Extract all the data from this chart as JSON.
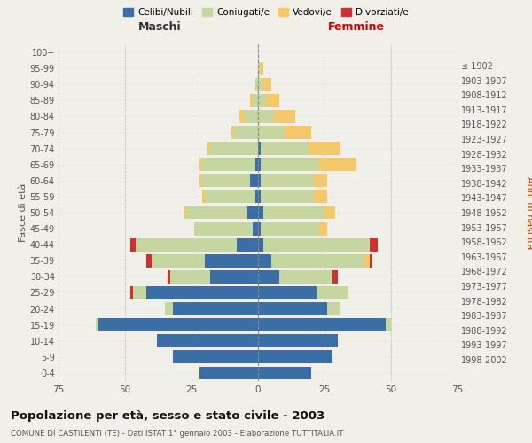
{
  "age_groups": [
    "0-4",
    "5-9",
    "10-14",
    "15-19",
    "20-24",
    "25-29",
    "30-34",
    "35-39",
    "40-44",
    "45-49",
    "50-54",
    "55-59",
    "60-64",
    "65-69",
    "70-74",
    "75-79",
    "80-84",
    "85-89",
    "90-94",
    "95-99",
    "100+"
  ],
  "birth_years": [
    "1998-2002",
    "1993-1997",
    "1988-1992",
    "1983-1987",
    "1978-1982",
    "1973-1977",
    "1968-1972",
    "1963-1967",
    "1958-1962",
    "1953-1957",
    "1948-1952",
    "1943-1947",
    "1938-1942",
    "1933-1937",
    "1928-1932",
    "1923-1927",
    "1918-1922",
    "1913-1917",
    "1908-1912",
    "1903-1907",
    "≤ 1902"
  ],
  "male": {
    "celibe": [
      22,
      32,
      38,
      60,
      32,
      42,
      18,
      20,
      8,
      2,
      4,
      1,
      3,
      1,
      0,
      0,
      0,
      0,
      0,
      0,
      0
    ],
    "coniugato": [
      0,
      0,
      0,
      1,
      3,
      5,
      15,
      20,
      38,
      22,
      23,
      19,
      18,
      20,
      18,
      9,
      5,
      2,
      1,
      0,
      0
    ],
    "vedovo": [
      0,
      0,
      0,
      0,
      0,
      0,
      0,
      0,
      0,
      0,
      1,
      1,
      1,
      1,
      1,
      1,
      2,
      1,
      0,
      0,
      0
    ],
    "divorziato": [
      0,
      0,
      0,
      0,
      0,
      1,
      1,
      2,
      2,
      0,
      0,
      0,
      0,
      0,
      0,
      0,
      0,
      0,
      0,
      0,
      0
    ]
  },
  "female": {
    "nubile": [
      20,
      28,
      30,
      48,
      26,
      22,
      8,
      5,
      2,
      1,
      2,
      1,
      1,
      1,
      1,
      0,
      0,
      0,
      0,
      0,
      0
    ],
    "coniugata": [
      0,
      0,
      0,
      2,
      5,
      12,
      20,
      35,
      40,
      22,
      23,
      20,
      20,
      22,
      18,
      10,
      6,
      3,
      2,
      1,
      0
    ],
    "vedova": [
      0,
      0,
      0,
      0,
      0,
      0,
      0,
      2,
      0,
      3,
      4,
      5,
      5,
      14,
      12,
      10,
      8,
      5,
      3,
      1,
      0
    ],
    "divorziata": [
      0,
      0,
      0,
      0,
      0,
      0,
      2,
      1,
      3,
      0,
      0,
      0,
      0,
      0,
      0,
      0,
      0,
      0,
      0,
      0,
      0
    ]
  },
  "colors": {
    "celibe": "#3a6ea5",
    "coniugato": "#c5d6a0",
    "vedovo": "#f5c96a",
    "divorziato": "#d03030"
  },
  "title": "Popolazione per età, sesso e stato civile - 2003",
  "subtitle": "COMUNE DI CASTILENTI (TE) - Dati ISTAT 1° gennaio 2003 - Elaborazione TUTTITALIA.IT",
  "xlabel_left": "Maschi",
  "xlabel_right": "Femmine",
  "ylabel_left": "Fasce di età",
  "ylabel_right": "Anni di nascita",
  "xlim": 75,
  "bg_color": "#f0efe8",
  "legend_labels": [
    "Celibi/Nubili",
    "Coniugati/e",
    "Vedovi/e",
    "Divorziati/e"
  ]
}
